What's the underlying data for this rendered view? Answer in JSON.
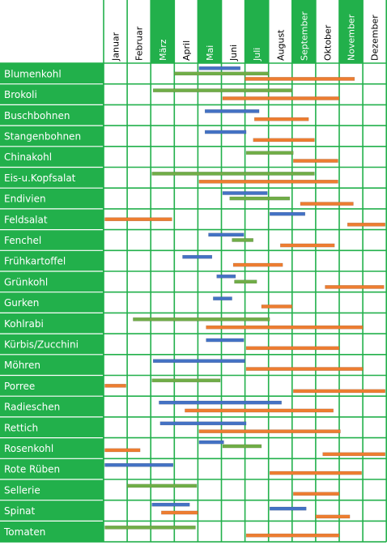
{
  "chart_data": {
    "type": "gantt",
    "months": [
      "Januar",
      "Februar",
      "März",
      "April",
      "Mai",
      "Juni",
      "Juli",
      "August",
      "September",
      "Oktober",
      "November",
      "Dezember"
    ],
    "highlighted_months": [
      2,
      4,
      6,
      8,
      10
    ],
    "colors": {
      "green": "#22b04b",
      "month_light": "#ffffff",
      "grid": "#22b04b",
      "bar_blue": "#4472c4",
      "bar_green": "#70ad47",
      "bar_orange": "#ed7d31"
    },
    "rows": [
      {
        "name": "Blumenkohl",
        "bars": [
          {
            "start": 4.05,
            "end": 5.8,
            "color": "blue"
          },
          {
            "start": 3.0,
            "end": 7.0,
            "color": "green"
          },
          {
            "start": 6.0,
            "end": 10.65,
            "color": "orange"
          }
        ]
      },
      {
        "name": "Brokoli",
        "bars": [
          {
            "start": 2.1,
            "end": 8.0,
            "color": "green"
          },
          {
            "start": 5.05,
            "end": 10.0,
            "color": "orange"
          }
        ]
      },
      {
        "name": "Buschbohnen",
        "bars": [
          {
            "start": 4.3,
            "end": 6.6,
            "color": "blue"
          },
          {
            "start": 6.4,
            "end": 8.7,
            "color": "orange"
          }
        ]
      },
      {
        "name": "Stangenbohnen",
        "bars": [
          {
            "start": 4.3,
            "end": 6.05,
            "color": "blue"
          },
          {
            "start": 6.35,
            "end": 8.95,
            "color": "orange"
          }
        ]
      },
      {
        "name": "Chinakohl",
        "bars": [
          {
            "start": 6.05,
            "end": 8.05,
            "color": "green"
          },
          {
            "start": 8.05,
            "end": 9.95,
            "color": "orange"
          }
        ]
      },
      {
        "name": "Eis-u.Kopfsalat",
        "bars": [
          {
            "start": 2.05,
            "end": 8.95,
            "color": "green"
          },
          {
            "start": 4.05,
            "end": 9.95,
            "color": "orange"
          }
        ]
      },
      {
        "name": "Endivien",
        "bars": [
          {
            "start": 5.05,
            "end": 6.95,
            "color": "blue"
          },
          {
            "start": 5.35,
            "end": 7.9,
            "color": "green"
          },
          {
            "start": 8.35,
            "end": 10.6,
            "color": "orange"
          }
        ]
      },
      {
        "name": "Feldsalat",
        "bars": [
          {
            "start": 7.05,
            "end": 8.55,
            "color": "blue"
          },
          {
            "start": 0.05,
            "end": 2.9,
            "color": "orange"
          },
          {
            "start": 10.35,
            "end": 11.95,
            "color": "orange"
          }
        ]
      },
      {
        "name": "Fenchel",
        "bars": [
          {
            "start": 4.45,
            "end": 5.95,
            "color": "blue"
          },
          {
            "start": 5.45,
            "end": 6.35,
            "color": "green"
          },
          {
            "start": 7.5,
            "end": 9.8,
            "color": "orange"
          }
        ]
      },
      {
        "name": "Frühkartoffel",
        "bars": [
          {
            "start": 3.35,
            "end": 4.6,
            "color": "blue"
          },
          {
            "start": 5.5,
            "end": 7.6,
            "color": "orange"
          }
        ]
      },
      {
        "name": "Grünkohl",
        "bars": [
          {
            "start": 4.8,
            "end": 5.6,
            "color": "blue"
          },
          {
            "start": 5.55,
            "end": 6.5,
            "color": "green"
          },
          {
            "start": 9.4,
            "end": 11.9,
            "color": "orange"
          }
        ]
      },
      {
        "name": "Gurken",
        "bars": [
          {
            "start": 4.65,
            "end": 5.45,
            "color": "blue"
          },
          {
            "start": 6.7,
            "end": 8.0,
            "color": "orange"
          }
        ]
      },
      {
        "name": "Kohlrabi",
        "bars": [
          {
            "start": 1.25,
            "end": 7.05,
            "color": "green"
          },
          {
            "start": 4.35,
            "end": 11.0,
            "color": "orange"
          }
        ]
      },
      {
        "name": "Kürbis/Zucchini",
        "bars": [
          {
            "start": 4.35,
            "end": 5.95,
            "color": "blue"
          },
          {
            "start": 6.05,
            "end": 10.0,
            "color": "orange"
          }
        ]
      },
      {
        "name": "Möhren",
        "bars": [
          {
            "start": 2.1,
            "end": 6.0,
            "color": "blue"
          },
          {
            "start": 6.05,
            "end": 11.0,
            "color": "orange"
          }
        ]
      },
      {
        "name": "Porree",
        "bars": [
          {
            "start": 2.05,
            "end": 4.95,
            "color": "green"
          },
          {
            "start": 0.05,
            "end": 0.95,
            "color": "orange"
          },
          {
            "start": 8.05,
            "end": 11.95,
            "color": "orange"
          }
        ]
      },
      {
        "name": "Radieschen",
        "bars": [
          {
            "start": 2.35,
            "end": 7.55,
            "color": "blue"
          },
          {
            "start": 3.45,
            "end": 9.75,
            "color": "orange"
          }
        ]
      },
      {
        "name": "Rettich",
        "bars": [
          {
            "start": 2.4,
            "end": 6.05,
            "color": "blue"
          },
          {
            "start": 4.05,
            "end": 10.05,
            "color": "orange"
          }
        ]
      },
      {
        "name": "Rosenkohl",
        "bars": [
          {
            "start": 4.05,
            "end": 5.1,
            "color": "blue"
          },
          {
            "start": 5.05,
            "end": 6.7,
            "color": "green"
          },
          {
            "start": 0.05,
            "end": 1.55,
            "color": "orange"
          },
          {
            "start": 9.3,
            "end": 11.95,
            "color": "orange"
          }
        ]
      },
      {
        "name": "Rote Rüben",
        "bars": [
          {
            "start": 0.05,
            "end": 2.95,
            "color": "blue"
          },
          {
            "start": 7.05,
            "end": 10.95,
            "color": "orange"
          }
        ]
      },
      {
        "name": "Sellerie",
        "bars": [
          {
            "start": 1.0,
            "end": 3.95,
            "color": "green"
          },
          {
            "start": 8.05,
            "end": 10.0,
            "color": "orange"
          }
        ]
      },
      {
        "name": "Spinat",
        "bars": [
          {
            "start": 2.05,
            "end": 3.65,
            "color": "blue"
          },
          {
            "start": 7.05,
            "end": 8.6,
            "color": "blue"
          },
          {
            "start": 2.45,
            "end": 4.0,
            "color": "orange"
          },
          {
            "start": 9.0,
            "end": 10.45,
            "color": "orange"
          }
        ]
      },
      {
        "name": "Tomaten",
        "bars": [
          {
            "start": 0.05,
            "end": 3.9,
            "color": "green"
          },
          {
            "start": 6.05,
            "end": 10.0,
            "color": "orange"
          }
        ]
      }
    ]
  }
}
